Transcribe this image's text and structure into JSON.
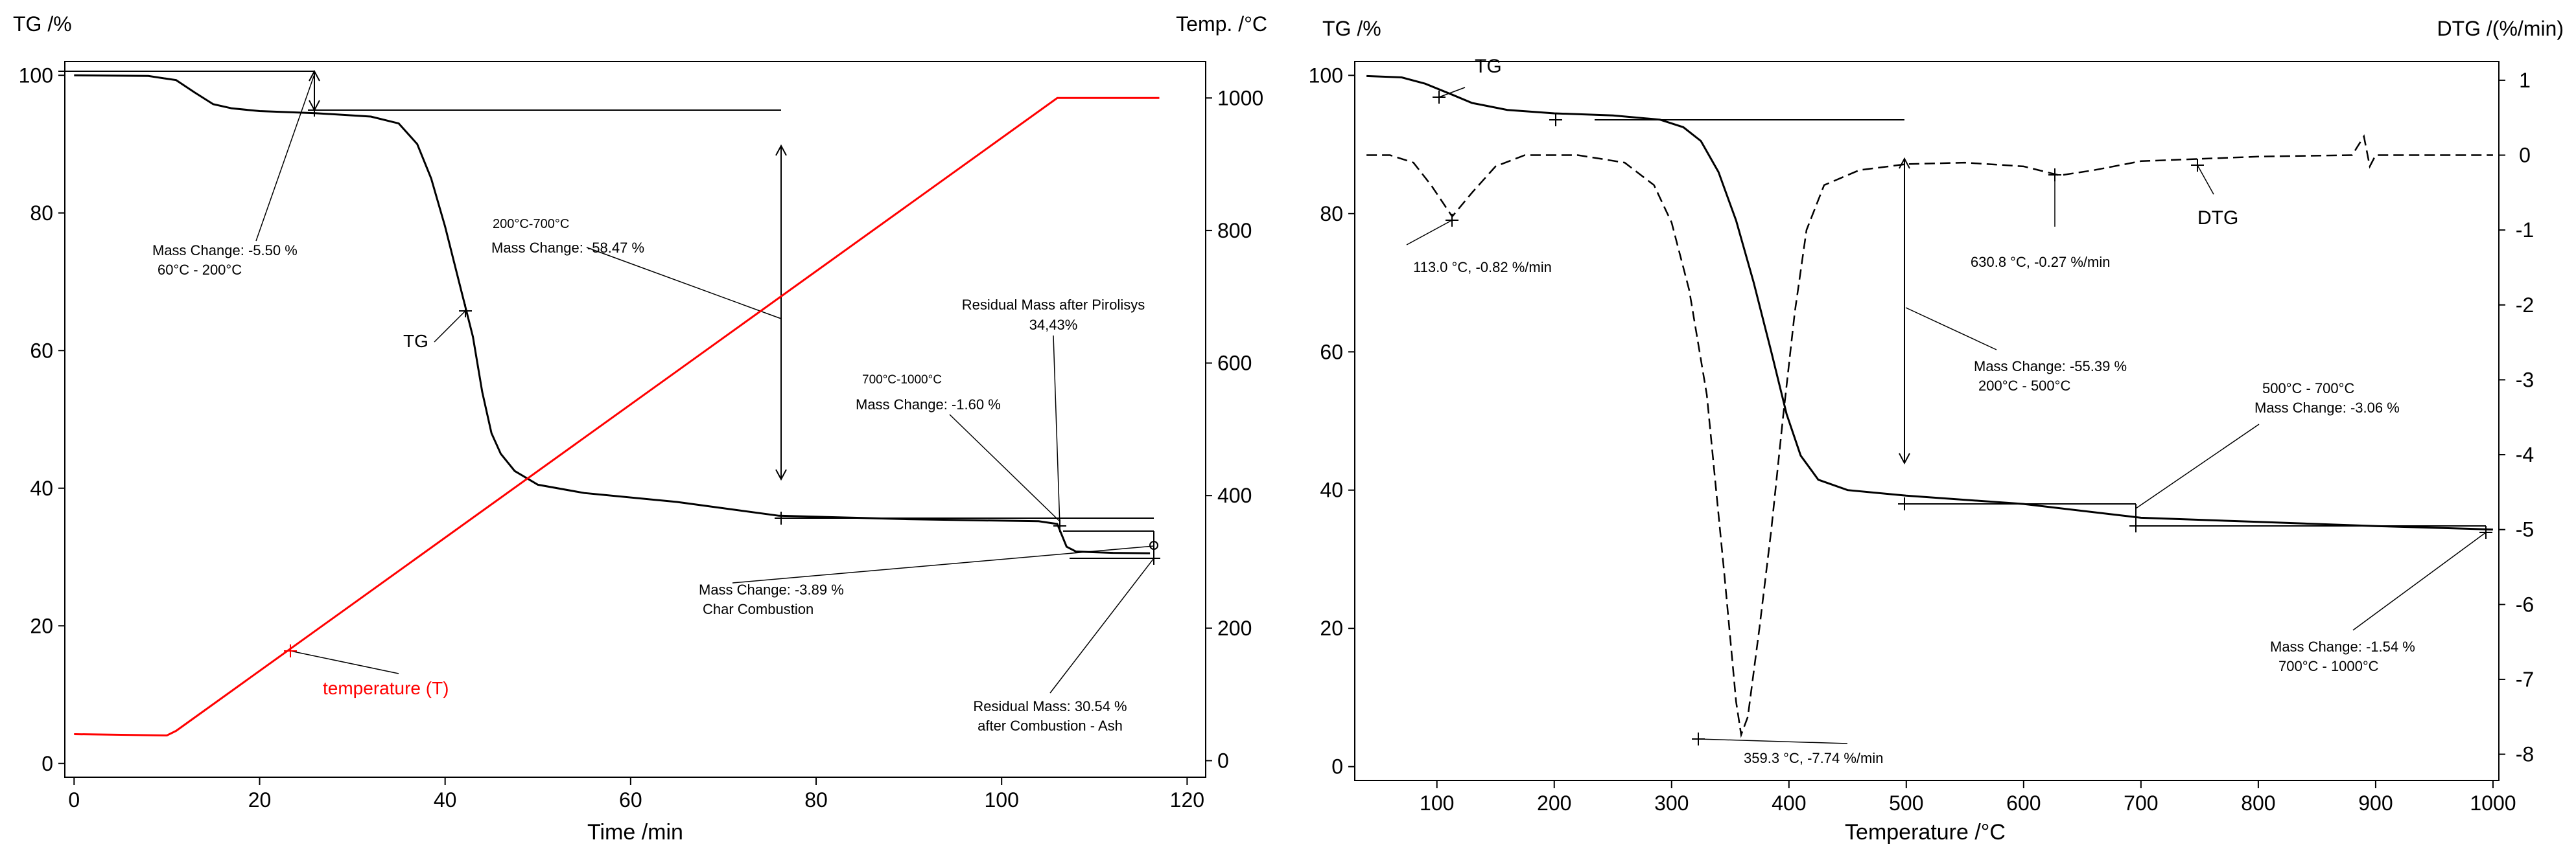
{
  "chart_data": [
    {
      "type": "line",
      "title": "",
      "xlabel": "Time /min",
      "ylabel_left": "TG /%",
      "ylabel_right": "Temp. /°C",
      "xlim": [
        -1,
        122
      ],
      "ylim_left": [
        -2,
        102
      ],
      "ylim_right": [
        -25,
        1055
      ],
      "xticks": [
        0,
        20,
        40,
        60,
        80,
        100,
        120
      ],
      "yticks_left": [
        0,
        20,
        40,
        60,
        80,
        100
      ],
      "yticks_right": [
        0,
        200,
        400,
        600,
        800,
        1000
      ],
      "series": [
        {
          "name": "TG",
          "axis": "left",
          "color": "#000000",
          "style": "solid",
          "points": [
            [
              0,
              100
            ],
            [
              8,
              99.9
            ],
            [
              11,
              99.3
            ],
            [
              13,
              97.5
            ],
            [
              15,
              95.8
            ],
            [
              17,
              95.2
            ],
            [
              20,
              94.8
            ],
            [
              26,
              94.5
            ],
            [
              32,
              94.0
            ],
            [
              35,
              93.0
            ],
            [
              37,
              90
            ],
            [
              38.5,
              85
            ],
            [
              40,
              78
            ],
            [
              41.5,
              70
            ],
            [
              43,
              62
            ],
            [
              44,
              54
            ],
            [
              45,
              48
            ],
            [
              46,
              45
            ],
            [
              47.5,
              42.5
            ],
            [
              50,
              40.5
            ],
            [
              55,
              39.3
            ],
            [
              65,
              38
            ],
            [
              76,
              36
            ],
            [
              90,
              35.5
            ],
            [
              104,
              35.2
            ],
            [
              106,
              34.8
            ],
            [
              107,
              31.5
            ],
            [
              108,
              30.8
            ],
            [
              112,
              30.6
            ],
            [
              116,
              30.54
            ]
          ]
        },
        {
          "name": "temperature (T)",
          "axis": "right",
          "color": "#ff0000",
          "style": "solid",
          "points": [
            [
              0,
              40
            ],
            [
              10,
              38
            ],
            [
              11,
              45
            ],
            [
              106,
              1000
            ],
            [
              117,
              1000
            ]
          ]
        }
      ],
      "annotations": [
        {
          "lines": [
            "Mass Change: -5.50 %",
            "60°C - 200°C"
          ]
        },
        {
          "lines": [
            "200°C-700°C",
            "Mass Change: -58.47 %"
          ]
        },
        {
          "lines": [
            "TG"
          ]
        },
        {
          "lines": [
            "Residual Mass after Pirolisys",
            "34,43%"
          ]
        },
        {
          "lines": [
            "700°C-1000°C",
            "Mass Change: -1.60 %"
          ]
        },
        {
          "lines": [
            "Mass Change: -3.89 %",
            "Char Combustion"
          ]
        },
        {
          "lines": [
            "temperature (T)"
          ]
        },
        {
          "lines": [
            "Residual Mass: 30.54 %",
            "after Combustion - Ash"
          ]
        }
      ]
    },
    {
      "type": "line",
      "title": "",
      "xlabel": "Temperature /°C",
      "ylabel_left": "TG /%",
      "ylabel_right": "DTG /(%/min)",
      "xlim": [
        30,
        1005
      ],
      "ylim_left": [
        -2,
        102
      ],
      "ylim_right": [
        -8.35,
        1.25
      ],
      "xticks": [
        100,
        200,
        300,
        400,
        500,
        600,
        700,
        800,
        900,
        1000
      ],
      "yticks_left": [
        0,
        20,
        40,
        60,
        80,
        100
      ],
      "yticks_right": [
        1,
        0,
        -1,
        -2,
        -3,
        -4,
        -5,
        -6,
        -7,
        -8
      ],
      "series": [
        {
          "name": "TG",
          "axis": "left",
          "color": "#000000",
          "style": "solid",
          "points": [
            [
              40,
              99.9
            ],
            [
              70,
              99.7
            ],
            [
              90,
              98.8
            ],
            [
              113,
              97.2
            ],
            [
              130,
              96.0
            ],
            [
              160,
              95.0
            ],
            [
              200,
              94.5
            ],
            [
              250,
              94.2
            ],
            [
              290,
              93.6
            ],
            [
              310,
              92.5
            ],
            [
              325,
              90.5
            ],
            [
              340,
              86
            ],
            [
              355,
              79
            ],
            [
              370,
              70
            ],
            [
              385,
              60
            ],
            [
              398,
              51
            ],
            [
              410,
              45
            ],
            [
              425,
              41.5
            ],
            [
              450,
              40
            ],
            [
              500,
              39.2
            ],
            [
              600,
              38
            ],
            [
              700,
              36
            ],
            [
              800,
              35.4
            ],
            [
              900,
              34.8
            ],
            [
              1000,
              34.3
            ]
          ]
        },
        {
          "name": "DTG",
          "axis": "right",
          "color": "#000000",
          "style": "dashed",
          "points": [
            [
              40,
              0
            ],
            [
              60,
              0
            ],
            [
              80,
              -0.1
            ],
            [
              95,
              -0.4
            ],
            [
              113,
              -0.82
            ],
            [
              130,
              -0.5
            ],
            [
              150,
              -0.15
            ],
            [
              175,
              0
            ],
            [
              220,
              0
            ],
            [
              260,
              -0.1
            ],
            [
              285,
              -0.4
            ],
            [
              300,
              -0.9
            ],
            [
              315,
              -1.8
            ],
            [
              330,
              -3.2
            ],
            [
              345,
              -5.6
            ],
            [
              355,
              -7.3
            ],
            [
              359.3,
              -7.74
            ],
            [
              365,
              -7.5
            ],
            [
              375,
              -6.3
            ],
            [
              385,
              -5.0
            ],
            [
              395,
              -3.5
            ],
            [
              405,
              -2.1
            ],
            [
              415,
              -1.0
            ],
            [
              430,
              -0.4
            ],
            [
              460,
              -0.2
            ],
            [
              500,
              -0.12
            ],
            [
              550,
              -0.1
            ],
            [
              600,
              -0.15
            ],
            [
              630.8,
              -0.27
            ],
            [
              660,
              -0.2
            ],
            [
              700,
              -0.08
            ],
            [
              800,
              -0.02
            ],
            [
              880,
              0
            ],
            [
              890,
              0.25
            ],
            [
              895,
              -0.15
            ],
            [
              900,
              0
            ],
            [
              1000,
              0
            ]
          ]
        }
      ],
      "annotations": [
        {
          "lines": [
            "TG"
          ]
        },
        {
          "lines": [
            "113.0 °C, -0.82 %/min"
          ]
        },
        {
          "lines": [
            "630.8 °C, -0.27 %/min"
          ]
        },
        {
          "lines": [
            "DTG"
          ]
        },
        {
          "lines": [
            "Mass Change: -55.39 %",
            "200°C - 500°C"
          ]
        },
        {
          "lines": [
            "500°C - 700°C",
            "Mass Change: -3.06 %"
          ]
        },
        {
          "lines": [
            "Mass Change: -1.54 %",
            "700°C - 1000°C"
          ]
        },
        {
          "lines": [
            "359.3 °C, -7.74 %/min"
          ]
        }
      ]
    }
  ]
}
